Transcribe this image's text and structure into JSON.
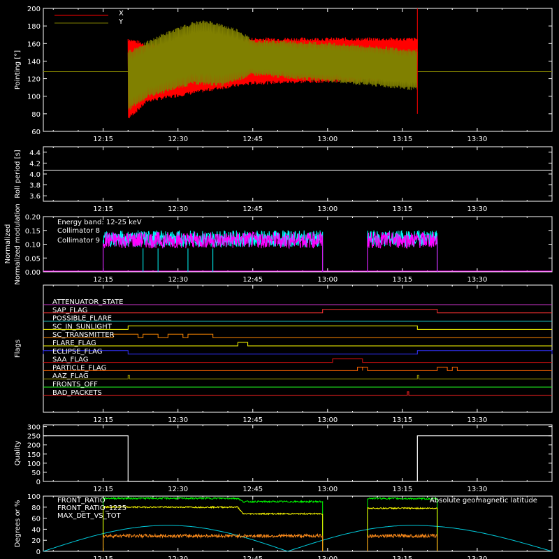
{
  "colors": {
    "background": "#000000",
    "axes": "#ffffff",
    "x": "#ff0000",
    "y": "#808000",
    "collimator8": "#00ffff",
    "collimator9": "#ff00ff",
    "front_ratio": "#00ff00",
    "front_ratio_1225": "#ffff00",
    "max_det_vs_tot": "#ff8c1a",
    "geomag": "#00ccdd"
  },
  "time_axis": {
    "start": "12:03",
    "end": "13:45",
    "tick_labels": [
      "12:15",
      "12:30",
      "12:45",
      "13:00",
      "13:15",
      "13:30"
    ]
  },
  "chart_data": [
    {
      "id": "pointing",
      "type": "line",
      "ylabel": "Pointing [°]",
      "ylim": [
        60,
        200
      ],
      "yticks": [
        60,
        80,
        100,
        120,
        140,
        160,
        180,
        200
      ],
      "legend": [
        "X",
        "Y"
      ],
      "series": [
        {
          "name": "X",
          "color": "#ff0000",
          "upper": [
            [
              12.334,
              165
            ],
            [
              12.4,
              158
            ],
            [
              12.65,
              158
            ],
            [
              12.75,
              165
            ],
            [
              13.3,
              165
            ]
          ],
          "lower": [
            [
              12.334,
              75
            ],
            [
              12.4,
              95
            ],
            [
              12.65,
              110
            ],
            [
              12.75,
              115
            ],
            [
              13.3,
              120
            ]
          ]
        },
        {
          "name": "Y",
          "color": "#808000",
          "upper": [
            [
              12.334,
              150
            ],
            [
              12.45,
              170
            ],
            [
              12.55,
              183
            ],
            [
              12.6,
              185
            ],
            [
              12.7,
              175
            ],
            [
              12.75,
              163
            ],
            [
              13.0,
              160
            ],
            [
              13.3,
              152
            ]
          ],
          "lower": [
            [
              12.334,
              85
            ],
            [
              12.4,
              100
            ],
            [
              12.55,
              115
            ],
            [
              12.65,
              113
            ],
            [
              12.75,
              125
            ],
            [
              13.0,
              118
            ],
            [
              13.3,
              108
            ]
          ],
          "flat": 128
        }
      ],
      "data_start": "12:20",
      "data_end": "13:18"
    },
    {
      "id": "roll_period",
      "type": "line",
      "ylabel": "Roll period [s]",
      "ylim": [
        3.5,
        4.5
      ],
      "yticks": [
        3.6,
        3.8,
        4.0,
        4.2,
        4.4
      ],
      "value": 4.07
    },
    {
      "id": "modulation",
      "type": "line",
      "ylabel": "Normalized modulation",
      "ylim": [
        0,
        0.2
      ],
      "yticks": [
        0.0,
        0.05,
        0.1,
        0.15,
        0.2
      ],
      "annotation": "Energy band: 12-25 keV",
      "legend": [
        "Collimator 8",
        "Collimator 9"
      ],
      "segments": [
        [
          "12:15",
          "12:59"
        ],
        [
          "13:08",
          "13:22"
        ]
      ],
      "mean": 0.12,
      "dip_times": [
        "12:23",
        "12:26",
        "12:32",
        "12:37"
      ]
    },
    {
      "id": "flags",
      "type": "line",
      "ylabel": "Flags",
      "flags": [
        {
          "name": "ATTENUATOR_STATE",
          "color": "#cc33cc",
          "on": []
        },
        {
          "name": "SAP_FLAG",
          "color": "#ff3333",
          "on": [
            [
              "12:59",
              "13:22"
            ]
          ]
        },
        {
          "name": "POSSIBLE_FLARE",
          "color": "#22dddd",
          "on": []
        },
        {
          "name": "SC_IN_SUNLIGHT",
          "color": "#ffff00",
          "on": [
            [
              "12:20",
              "13:18"
            ]
          ]
        },
        {
          "name": "SC_TRANSMITTER",
          "color": "#ff8800",
          "on": [
            [
              "12:17",
              "12:22"
            ],
            [
              "12:23",
              "12:26"
            ],
            [
              "12:28",
              "12:31"
            ],
            [
              "12:32",
              "12:37"
            ]
          ]
        },
        {
          "name": "FLARE_FLAG",
          "color": "#ffff00",
          "on": [
            [
              "12:42",
              "12:44"
            ]
          ]
        },
        {
          "name": "ECLIPSE_FLAG",
          "color": "#3333ff",
          "on": [
            [
              "12:03",
              "12:20"
            ],
            [
              "13:18",
              "13:45"
            ]
          ]
        },
        {
          "name": "SAA_FLAG",
          "color": "#dd1111",
          "on": [
            [
              "13:01",
              "13:07"
            ]
          ]
        },
        {
          "name": "PARTICLE_FLAG",
          "color": "#ff6600",
          "on": [
            [
              "13:06",
              "13:07"
            ],
            [
              "13:07",
              "13:08"
            ],
            [
              "13:22",
              "13:24"
            ],
            [
              "13:25",
              "13:26"
            ]
          ]
        },
        {
          "name": "AAZ_FLAG",
          "color": "#999900",
          "on": [
            [
              "12:20",
              "12:20"
            ],
            [
              "13:18",
              "13:18"
            ]
          ]
        },
        {
          "name": "FRONTS_OFF",
          "color": "#22ff22",
          "on": []
        },
        {
          "name": "BAD_PACKETS",
          "color": "#ff2222",
          "on": [
            [
              "13:16",
              "13:16"
            ]
          ]
        }
      ]
    },
    {
      "id": "quality",
      "type": "line",
      "ylabel": "Quality",
      "ylim": [
        0,
        310
      ],
      "yticks": [
        0,
        50,
        100,
        150,
        200,
        250,
        300
      ],
      "series": [
        {
          "name": "",
          "color": "#ffffff",
          "points": [
            [
              "12:03",
              250
            ],
            [
              "12:20",
              250
            ],
            [
              "12:20",
              0
            ],
            [
              "13:18",
              0
            ],
            [
              "13:18",
              60
            ],
            [
              "13:18",
              250
            ],
            [
              "13:45",
              250
            ]
          ]
        }
      ]
    },
    {
      "id": "ratios",
      "type": "line",
      "ylabel": "Degrees or %",
      "ylim": [
        0,
        100
      ],
      "yticks": [
        0,
        20,
        40,
        60,
        80,
        100
      ],
      "legend": [
        "FRONT_RATIO",
        "FRONT_RATIO_1225",
        "MAX_DET_VS_TOT"
      ],
      "right_label": "Absolute geomagnetic latitude",
      "segments": [
        [
          "12:15",
          "12:59"
        ],
        [
          "13:08",
          "13:22"
        ]
      ],
      "front_ratio": [
        [
          "12:15",
          96
        ],
        [
          "12:42",
          96
        ],
        [
          "12:43",
          90
        ],
        [
          "12:59",
          90
        ],
        [
          "13:08",
          96
        ],
        [
          "13:22",
          95
        ]
      ],
      "front_ratio_1225": [
        [
          "12:15",
          80
        ],
        [
          "12:42",
          80
        ],
        [
          "12:43",
          68
        ],
        [
          "12:59",
          68
        ],
        [
          "13:08",
          78
        ],
        [
          "13:22",
          78
        ]
      ],
      "max_det_vs_tot": 28,
      "geomag": [
        [
          "12:03",
          0
        ],
        [
          "12:28",
          47
        ],
        [
          "12:52",
          0
        ],
        [
          "13:17",
          47
        ],
        [
          "13:45",
          0
        ]
      ]
    }
  ]
}
